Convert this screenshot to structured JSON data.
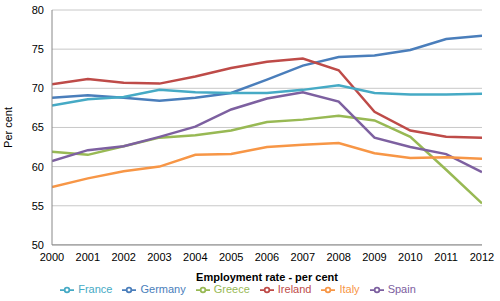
{
  "chart_data": {
    "type": "line",
    "x_label": "Employment rate - per cent",
    "y_label": "Per cent",
    "x": [
      2000,
      2001,
      2002,
      2003,
      2004,
      2005,
      2006,
      2007,
      2008,
      2009,
      2010,
      2011,
      2012
    ],
    "xlim": [
      2000,
      2012
    ],
    "xticks": [
      2000,
      2001,
      2002,
      2003,
      2004,
      2005,
      2006,
      2007,
      2008,
      2009,
      2010,
      2011,
      2012
    ],
    "ylim": [
      50,
      80
    ],
    "yticks": [
      50,
      55,
      60,
      65,
      70,
      75,
      80
    ],
    "grid": true,
    "legend": "bottom",
    "series": [
      {
        "name": "Germany",
        "color": "#4a7ebb",
        "values": [
          68.8,
          69.1,
          68.8,
          68.4,
          68.8,
          69.4,
          71.1,
          72.9,
          74.0,
          74.2,
          74.9,
          76.3,
          76.7
        ]
      },
      {
        "name": "Ireland",
        "color": "#be4b48",
        "values": [
          70.5,
          71.2,
          70.7,
          70.6,
          71.5,
          72.6,
          73.4,
          73.8,
          72.3,
          67.0,
          64.6,
          63.8,
          63.7
        ]
      },
      {
        "name": "Greece",
        "color": "#98b954",
        "values": [
          61.9,
          61.5,
          62.6,
          63.7,
          64.0,
          64.6,
          65.7,
          66.0,
          66.5,
          65.9,
          63.8,
          59.6,
          55.3
        ]
      },
      {
        "name": "Spain",
        "color": "#7d60a0",
        "values": [
          60.7,
          62.1,
          62.6,
          63.8,
          65.1,
          67.3,
          68.7,
          69.5,
          68.3,
          63.7,
          62.5,
          61.6,
          59.3
        ]
      },
      {
        "name": "France",
        "color": "#46aac5",
        "values": [
          67.8,
          68.6,
          68.9,
          69.8,
          69.5,
          69.4,
          69.4,
          69.8,
          70.4,
          69.4,
          69.2,
          69.2,
          69.3
        ]
      },
      {
        "name": "Italy",
        "color": "#f79646",
        "values": [
          57.4,
          58.5,
          59.4,
          60.0,
          61.5,
          61.6,
          62.5,
          62.8,
          63.0,
          61.7,
          61.1,
          61.2,
          61.0
        ]
      }
    ]
  }
}
